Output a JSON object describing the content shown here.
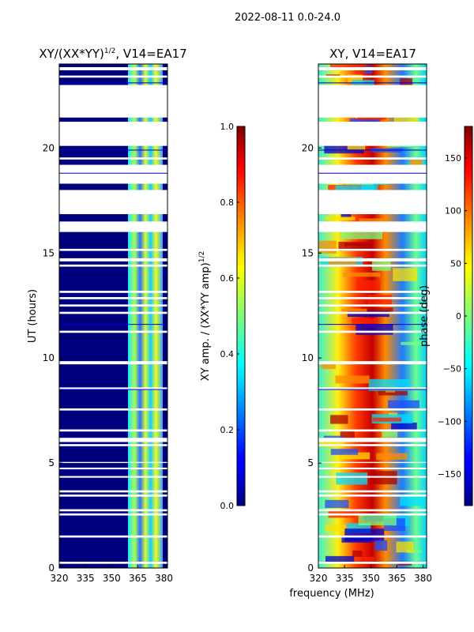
{
  "figure_title": "2022-08-11 0.0-24.0",
  "shared_xlabel": "frequency (MHz)",
  "chart_data": [
    {
      "type": "heatmap",
      "title_main": "XY/(XX*YY)",
      "title_sup": "1/2",
      "title_rest": ", V14=EA17",
      "ylabel": "UT (hours)",
      "xlim": [
        320,
        382
      ],
      "ylim": [
        0,
        24
      ],
      "xticks": [
        320,
        335,
        350,
        365,
        380
      ],
      "yticks": [
        0,
        5,
        10,
        15,
        20
      ],
      "colormap": "jet",
      "colorbar": {
        "label_main": "XY amp. / (XX*YY amp)",
        "label_sup": "1/2",
        "range": [
          0.0,
          1.0
        ],
        "ticks": [
          "0.0",
          "0.2",
          "0.4",
          "0.6",
          "0.8",
          "1.0"
        ]
      }
    },
    {
      "type": "heatmap",
      "title": "XY, V14=EA17",
      "ylabel": "",
      "xlim": [
        320,
        382
      ],
      "ylim": [
        0,
        24
      ],
      "xticks": [
        320,
        335,
        350,
        365,
        380
      ],
      "yticks": [
        0,
        5,
        10,
        15,
        20
      ],
      "colormap": "jet",
      "colorbar": {
        "label": "phase (deg)",
        "range": [
          -180,
          180
        ],
        "ticks": [
          -150,
          -100,
          -50,
          0,
          50,
          100,
          150
        ]
      }
    }
  ],
  "flagged_ut_ranges": [
    [
      0.2,
      0.3
    ],
    [
      1.45,
      1.55
    ],
    [
      2.5,
      2.6
    ],
    [
      2.7,
      2.8
    ],
    [
      3.4,
      3.5
    ],
    [
      3.6,
      3.7
    ],
    [
      4.3,
      4.38
    ],
    [
      4.7,
      4.78
    ],
    [
      5.0,
      5.05
    ],
    [
      5.8,
      5.9
    ],
    [
      6.0,
      6.2
    ],
    [
      6.5,
      6.6
    ],
    [
      7.5,
      7.6
    ],
    [
      8.5,
      8.6
    ],
    [
      9.7,
      9.85
    ],
    [
      11.2,
      11.3
    ],
    [
      12.1,
      12.2
    ],
    [
      12.45,
      12.55
    ],
    [
      12.8,
      12.9
    ],
    [
      13.1,
      13.2
    ],
    [
      14.35,
      14.45
    ],
    [
      14.6,
      14.75
    ],
    [
      15.1,
      15.2
    ],
    [
      16.0,
      16.5
    ],
    [
      16.85,
      18.0
    ],
    [
      18.3,
      19.2
    ],
    [
      19.45,
      19.55
    ],
    [
      20.1,
      21.25
    ],
    [
      21.45,
      23.0
    ],
    [
      23.35,
      23.45
    ],
    [
      23.7,
      23.85
    ]
  ],
  "thin_line_ut": [
    8.5,
    11.6,
    18.8,
    19.9,
    23.1
  ]
}
